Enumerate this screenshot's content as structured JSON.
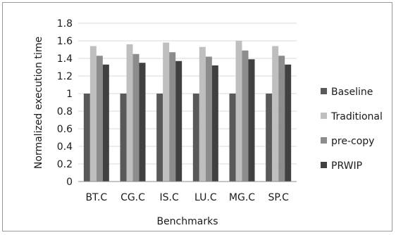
{
  "chart_data": {
    "type": "bar",
    "xlabel": "Benchmarks",
    "ylabel": "Normalized execution time",
    "ylim": [
      0,
      1.8
    ],
    "yticks": [
      "0",
      "0.2",
      "0.4",
      "0.6",
      "0.8",
      "1",
      "1.2",
      "1.4",
      "1.6",
      "1.8"
    ],
    "grid": true,
    "legend_position": "right",
    "categories": [
      "BT.C",
      "CG.C",
      "IS.C",
      "LU.C",
      "MG.C",
      "SP.C"
    ],
    "series": [
      {
        "name": "Baseline",
        "color": "#595959",
        "values": [
          1.0,
          1.0,
          1.0,
          1.0,
          1.0,
          1.0
        ]
      },
      {
        "name": "Traditional",
        "color": "#bfbfbf",
        "values": [
          1.54,
          1.56,
          1.58,
          1.53,
          1.6,
          1.54
        ]
      },
      {
        "name": "pre-copy",
        "color": "#8c8c8c",
        "values": [
          1.43,
          1.45,
          1.47,
          1.42,
          1.49,
          1.43
        ]
      },
      {
        "name": "PRWIP",
        "color": "#404040",
        "values": [
          1.33,
          1.35,
          1.37,
          1.32,
          1.39,
          1.33
        ]
      }
    ]
  }
}
